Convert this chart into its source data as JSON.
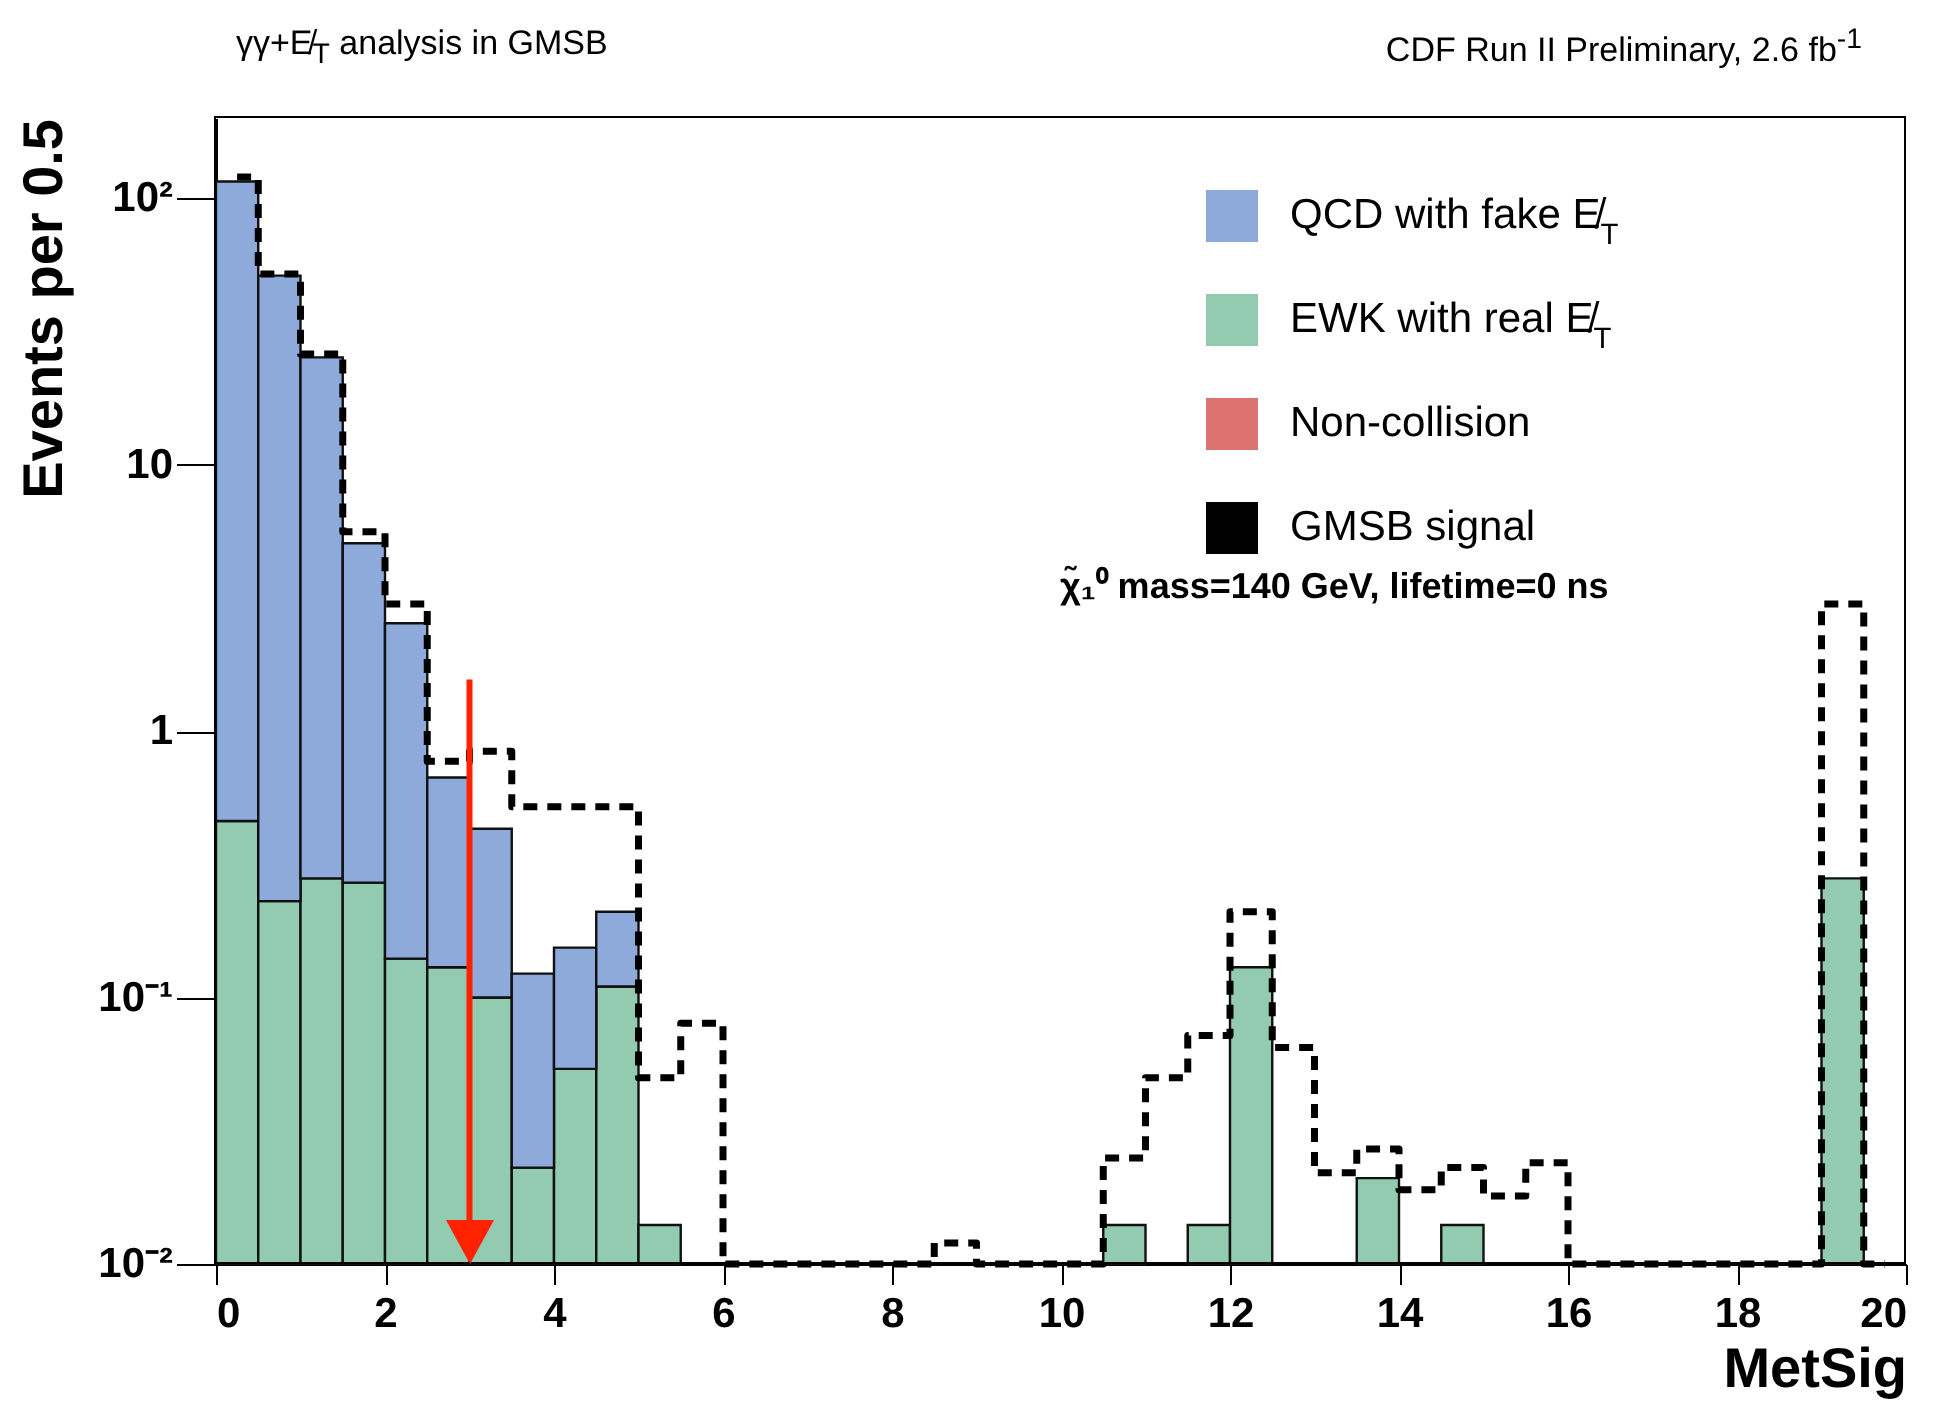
{
  "chart_data": {
    "type": "bar",
    "title": "γγ+E̸$_{T}$ analysis in GMSB",
    "subtitle": "CDF Run II Preliminary, 2.6 fb$^{-1}$",
    "xlabel": "MetSig",
    "ylabel": "Events per 0.5",
    "annotations": [
      "χ̃₁⁰ mass=140 GeV, lifetime=0 ns"
    ],
    "x": [
      0.25,
      0.75,
      1.25,
      1.75,
      2.25,
      2.75,
      3.25,
      3.75,
      4.25,
      4.75,
      5.25,
      5.75,
      6.25,
      6.75,
      7.25,
      7.75,
      8.25,
      8.75,
      9.25,
      9.75,
      10.25,
      10.75,
      11.25,
      11.75,
      12.25,
      12.75,
      13.25,
      13.75,
      14.25,
      14.75,
      15.25,
      15.75,
      16.25,
      16.75,
      17.25,
      17.75,
      18.25,
      18.75,
      19.25,
      19.75
    ],
    "stacked": true,
    "log": true,
    "legend": "top right",
    "line_style": "dashed",
    "marker": "none",
    "xlim": [
      0,
      20
    ],
    "xticks": [
      0,
      2,
      4,
      6,
      8,
      10,
      12,
      14,
      16,
      18,
      20
    ],
    "ylim": [
      0.01,
      200
    ],
    "yticks": [
      {
        "value": 0.01,
        "label": "10⁻²"
      },
      {
        "value": 0.1,
        "label": "10⁻¹"
      },
      1,
      10,
      {
        "value": 100,
        "label": "10²"
      }
    ],
    "ref_lines": [
      {
        "axis": "x",
        "value": 3,
        "color": "#ff2200"
      }
    ],
    "series": [
      {
        "name": "Non-collision",
        "color": "#dc7370",
        "values": [
          null,
          null,
          null,
          null,
          null,
          null,
          null,
          null,
          null,
          null,
          null,
          null,
          null,
          null,
          null,
          null,
          null,
          null,
          null,
          null,
          null,
          null,
          null,
          null,
          null,
          null,
          null,
          null,
          null,
          null,
          null,
          null,
          null,
          null,
          null,
          null,
          null,
          null,
          null,
          null
        ]
      },
      {
        "name": "EWK with real E̸$_{T}$",
        "color": "#93cbb1",
        "values": [
          0.46,
          0.23,
          0.28,
          0.27,
          0.14,
          0.13,
          0.1,
          0.023,
          0.054,
          0.11,
          0.014,
          null,
          null,
          null,
          null,
          null,
          null,
          null,
          null,
          null,
          null,
          0.014,
          null,
          0.014,
          0.13,
          null,
          null,
          0.021,
          null,
          0.014,
          null,
          null,
          null,
          null,
          null,
          null,
          null,
          null,
          0.28,
          null
        ]
      },
      {
        "name": "QCD with fake E̸$_{T}$",
        "color": "#8eaadb",
        "values": [
          115,
          51,
          25,
          4.8,
          2.4,
          0.54,
          0.33,
          0.1,
          0.1,
          0.1,
          null,
          null,
          null,
          null,
          null,
          null,
          null,
          null,
          null,
          null,
          null,
          null,
          null,
          null,
          null,
          null,
          null,
          null,
          null,
          null,
          null,
          null,
          null,
          null,
          null,
          null,
          null,
          null,
          null,
          null
        ]
      },
      {
        "name": "GMSB signal",
        "type": "step",
        "color": "#000000",
        "values": [
          120,
          52,
          26,
          5.6,
          3.0,
          0.77,
          0.84,
          0.52,
          0.52,
          0.52,
          0.05,
          0.08,
          0.01,
          0.01,
          0.01,
          0.01,
          0.01,
          0.012,
          0.01,
          0.01,
          0.01,
          0.025,
          0.05,
          0.072,
          0.21,
          0.065,
          0.022,
          0.027,
          0.019,
          0.023,
          0.018,
          0.024,
          0.01,
          0.01,
          0.01,
          0.01,
          0.01,
          0.01,
          3.0,
          0.01
        ]
      }
    ]
  }
}
